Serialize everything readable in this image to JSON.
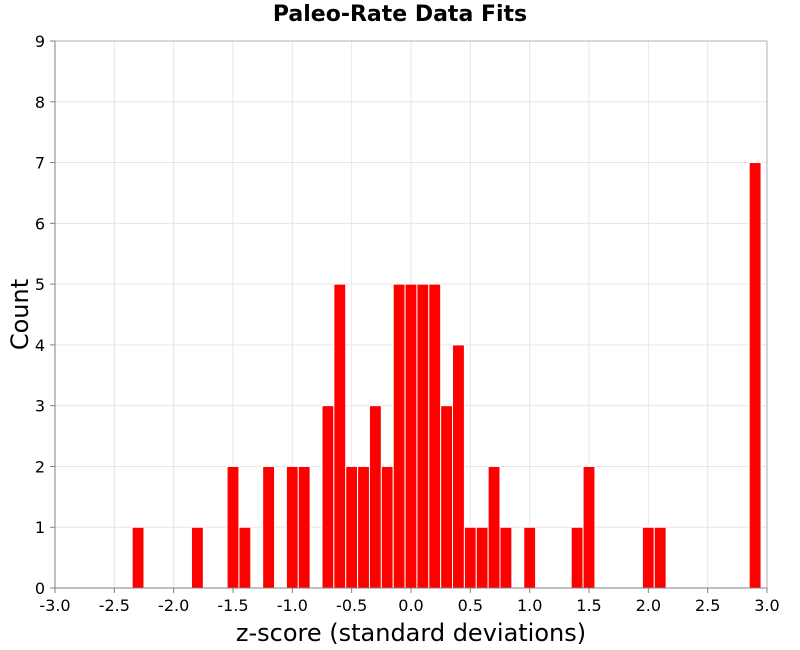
{
  "chart_data": {
    "type": "bar",
    "title": "Paleo-Rate Data Fits",
    "xlabel": "z-score (standard deviations)",
    "ylabel": "Count",
    "xlim": [
      -3.0,
      3.0
    ],
    "ylim": [
      0,
      9
    ],
    "bin_width": 0.1,
    "grid": true,
    "color": "#ff0000",
    "x_ticks": [
      "-3.0",
      "-2.5",
      "-2.0",
      "-1.5",
      "-1.0",
      "-0.5",
      "0.0",
      "0.5",
      "1.0",
      "1.5",
      "2.0",
      "2.5",
      "3.0"
    ],
    "y_ticks": [
      "0",
      "1",
      "2",
      "3",
      "4",
      "5",
      "6",
      "7",
      "8",
      "9"
    ],
    "bins": [
      {
        "x": -2.3,
        "count": 1
      },
      {
        "x": -1.8,
        "count": 1
      },
      {
        "x": -1.5,
        "count": 2
      },
      {
        "x": -1.4,
        "count": 1
      },
      {
        "x": -1.2,
        "count": 2
      },
      {
        "x": -1.0,
        "count": 2
      },
      {
        "x": -0.9,
        "count": 2
      },
      {
        "x": -0.7,
        "count": 3
      },
      {
        "x": -0.6,
        "count": 5
      },
      {
        "x": -0.5,
        "count": 2
      },
      {
        "x": -0.4,
        "count": 2
      },
      {
        "x": -0.3,
        "count": 3
      },
      {
        "x": -0.2,
        "count": 2
      },
      {
        "x": -0.1,
        "count": 5
      },
      {
        "x": 0.0,
        "count": 5
      },
      {
        "x": 0.1,
        "count": 5
      },
      {
        "x": 0.2,
        "count": 5
      },
      {
        "x": 0.3,
        "count": 3
      },
      {
        "x": 0.4,
        "count": 4
      },
      {
        "x": 0.5,
        "count": 1
      },
      {
        "x": 0.6,
        "count": 1
      },
      {
        "x": 0.7,
        "count": 2
      },
      {
        "x": 0.8,
        "count": 1
      },
      {
        "x": 1.0,
        "count": 1
      },
      {
        "x": 1.4,
        "count": 1
      },
      {
        "x": 1.5,
        "count": 2
      },
      {
        "x": 2.0,
        "count": 1
      },
      {
        "x": 2.1,
        "count": 1
      },
      {
        "x": 2.9,
        "count": 7
      }
    ]
  }
}
